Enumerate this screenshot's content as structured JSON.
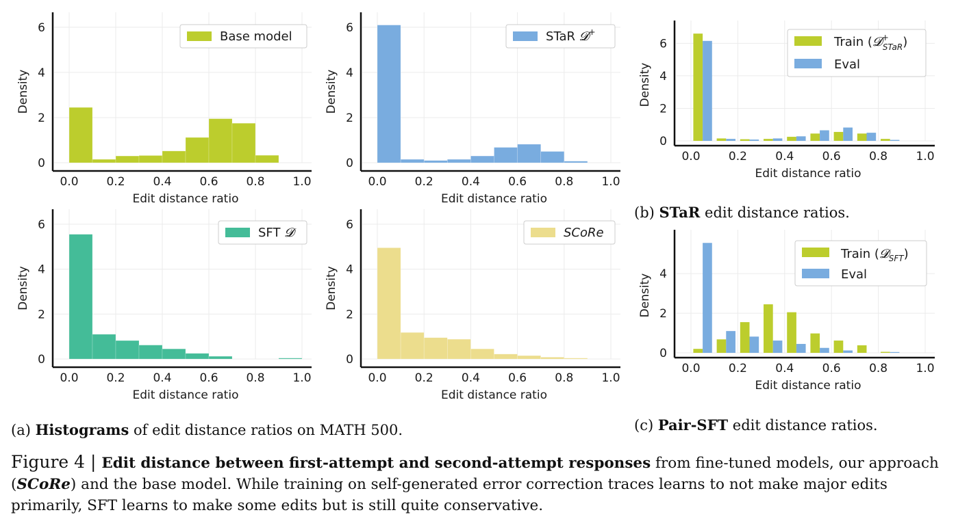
{
  "chart_data": [
    {
      "id": "a1",
      "type": "bar",
      "panel": "a",
      "x": [
        0.05,
        0.15,
        0.25,
        0.35,
        0.45,
        0.55,
        0.65,
        0.75,
        0.85,
        0.95
      ],
      "series": [
        {
          "name": "Base model",
          "color": "#bccd2d",
          "values": [
            2.45,
            0.15,
            0.3,
            0.32,
            0.52,
            1.12,
            1.95,
            1.75,
            0.33,
            0
          ]
        }
      ],
      "xlabel": "Edit distance ratio",
      "ylabel": "Density",
      "xlim": [
        0.0,
        1.0
      ],
      "ylim": [
        0,
        6.3
      ],
      "xticks": [
        "0.0",
        "0.2",
        "0.4",
        "0.6",
        "0.8",
        "1.0"
      ],
      "yticks": [
        "0",
        "2",
        "4",
        "6"
      ],
      "legend": "top-right",
      "legend_labels": [
        "Base model"
      ],
      "grid": true
    },
    {
      "id": "a2",
      "type": "bar",
      "panel": "a",
      "x": [
        0.05,
        0.15,
        0.25,
        0.35,
        0.45,
        0.55,
        0.65,
        0.75,
        0.85,
        0.95
      ],
      "series": [
        {
          "name": "STaR D+",
          "color": "#79acdf",
          "values": [
            6.1,
            0.15,
            0.1,
            0.15,
            0.3,
            0.68,
            0.82,
            0.5,
            0.07,
            0
          ]
        }
      ],
      "xlabel": "Edit distance ratio",
      "ylabel": "Density",
      "xlim": [
        0.0,
        1.0
      ],
      "ylim": [
        0,
        6.3
      ],
      "xticks": [
        "0.0",
        "0.2",
        "0.4",
        "0.6",
        "0.8",
        "1.0"
      ],
      "yticks": [
        "0",
        "2",
        "4",
        "6"
      ],
      "legend": "top-right",
      "legend_labels": [
        "STaR 𝓓⁺"
      ],
      "grid": true
    },
    {
      "id": "a3",
      "type": "bar",
      "panel": "a",
      "x": [
        0.05,
        0.15,
        0.25,
        0.35,
        0.45,
        0.55,
        0.65,
        0.75,
        0.85,
        0.95
      ],
      "series": [
        {
          "name": "SFT D",
          "color": "#44bc98",
          "values": [
            5.55,
            1.1,
            0.82,
            0.62,
            0.45,
            0.25,
            0.12,
            0,
            0,
            0.04
          ]
        }
      ],
      "xlabel": "Edit distance ratio",
      "ylabel": "Density",
      "xlim": [
        0.0,
        1.0
      ],
      "ylim": [
        0,
        6.3
      ],
      "xticks": [
        "0.0",
        "0.2",
        "0.4",
        "0.6",
        "0.8",
        "1.0"
      ],
      "yticks": [
        "0",
        "2",
        "4",
        "6"
      ],
      "legend": "top-right",
      "legend_labels": [
        "SFT 𝓓"
      ],
      "grid": true
    },
    {
      "id": "a4",
      "type": "bar",
      "panel": "a",
      "x": [
        0.05,
        0.15,
        0.25,
        0.35,
        0.45,
        0.55,
        0.65,
        0.75,
        0.85,
        0.95
      ],
      "series": [
        {
          "name": "SCoRe",
          "color": "#ecdd8d",
          "values": [
            4.95,
            1.18,
            0.95,
            0.88,
            0.45,
            0.22,
            0.15,
            0.08,
            0.04,
            0
          ]
        }
      ],
      "xlabel": "Edit distance ratio",
      "ylabel": "Density",
      "xlim": [
        0.0,
        1.0
      ],
      "ylim": [
        0,
        6.3
      ],
      "xticks": [
        "0.0",
        "0.2",
        "0.4",
        "0.6",
        "0.8",
        "1.0"
      ],
      "yticks": [
        "0",
        "2",
        "4",
        "6"
      ],
      "legend": "top-right",
      "legend_labels": [
        "SCoRe"
      ],
      "grid": true
    },
    {
      "id": "b",
      "type": "bar",
      "panel": "b",
      "x": [
        0.05,
        0.15,
        0.25,
        0.35,
        0.45,
        0.55,
        0.65,
        0.75,
        0.85,
        0.95
      ],
      "series": [
        {
          "name": "Train (D+ STaR)",
          "color": "#bccd2d",
          "values": [
            6.6,
            0.15,
            0.1,
            0.12,
            0.25,
            0.45,
            0.55,
            0.45,
            0.12,
            0
          ]
        },
        {
          "name": "Eval",
          "color": "#79acdf",
          "values": [
            6.15,
            0.12,
            0.08,
            0.15,
            0.28,
            0.65,
            0.82,
            0.5,
            0.06,
            0
          ]
        }
      ],
      "xlabel": "Edit distance ratio",
      "ylabel": "Density",
      "xlim": [
        0.0,
        1.0
      ],
      "ylim": [
        0,
        6.9
      ],
      "xticks": [
        "0.0",
        "0.2",
        "0.4",
        "0.6",
        "0.8",
        "1.0"
      ],
      "yticks": [
        "0",
        "2",
        "4",
        "6"
      ],
      "legend": "top-right",
      "grid": true
    },
    {
      "id": "c",
      "type": "bar",
      "panel": "c",
      "x": [
        0.05,
        0.15,
        0.25,
        0.35,
        0.45,
        0.55,
        0.65,
        0.75,
        0.85,
        0.95
      ],
      "series": [
        {
          "name": "Train (D SFT)",
          "color": "#bccd2d",
          "values": [
            0.2,
            0.68,
            1.55,
            2.45,
            2.05,
            0.98,
            0.62,
            0.38,
            0.05,
            0
          ]
        },
        {
          "name": "Eval",
          "color": "#79acdf",
          "values": [
            5.55,
            1.1,
            0.82,
            0.62,
            0.45,
            0.25,
            0.12,
            0,
            0.04,
            0
          ]
        }
      ],
      "xlabel": "Edit distance ratio",
      "ylabel": "Density",
      "xlim": [
        0.0,
        1.0
      ],
      "ylim": [
        0,
        5.8
      ],
      "xticks": [
        "0.0",
        "0.2",
        "0.4",
        "0.6",
        "0.8",
        "1.0"
      ],
      "yticks": [
        "0",
        "2",
        "4"
      ],
      "legend": "top-right",
      "grid": true
    }
  ],
  "legends": {
    "b_train_prefix": "Train (",
    "b_train_sym": "𝓓",
    "b_train_sup": "+",
    "b_train_sub": "STaR",
    "b_train_suffix": ")",
    "c_train_prefix": "Train (",
    "c_train_sym": "𝓓",
    "c_train_sub": "SFT",
    "c_train_suffix": ")",
    "eval": "Eval"
  },
  "captions": {
    "a_prefix": "(a) ",
    "a_bold": "Histograms",
    "a_rest": " of edit distance ratios on MATH 500.",
    "b_prefix": "(b) ",
    "b_bold": "STaR",
    "b_rest": " edit distance ratios.",
    "c_prefix": "(c) ",
    "c_bold": "Pair-SFT",
    "c_rest": " edit distance ratios."
  },
  "figure_caption": {
    "label": "Figure 4 | ",
    "bold": "Edit distance between first-attempt and second-attempt responses",
    "part1": " from fine-tuned models, our approach (",
    "method": "SCoRe",
    "part2": ") and the base model. While training on self-generated error correction traces learns to not make major edits primarily, SFT learns to make some edits but is still quite conservative."
  }
}
